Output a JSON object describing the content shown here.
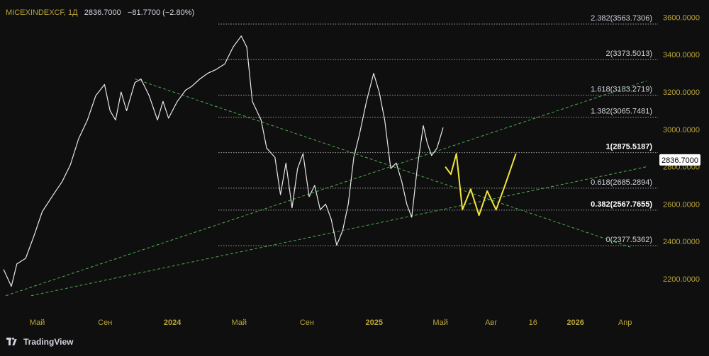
{
  "header": {
    "symbol": "MICEXINDEXCF, 1Д",
    "last": "2836.7000",
    "change": "−81.7700 (−2.80%)"
  },
  "brand": {
    "name": "TradingView"
  },
  "colors": {
    "background": "#0f0f0f",
    "price_line": "#e8e8e8",
    "projection": "#f2e33a",
    "trendlines": "#4caf50",
    "fib_levels": "#9a9a9a",
    "axis_text": "#b8a53a",
    "text": "#d1d4dc"
  },
  "chart_data": {
    "type": "line",
    "title": "MICEXINDEXCF, 1Д",
    "ylim": [
      2110,
      3615
    ],
    "grid": false,
    "y_ticks": [
      "2200.0000",
      "2400.0000",
      "2600.0000",
      "2800.0000",
      "3000.0000",
      "3200.0000",
      "3400.0000",
      "3600.0000"
    ],
    "y_tick_values": [
      2200,
      2400,
      2600,
      2800,
      3000,
      3200,
      3400,
      3600
    ],
    "x_ticks": [
      "Май",
      "Сен",
      "2024",
      "Май",
      "Сен",
      "2025",
      "Май",
      "Авг",
      "16",
      "2026",
      "Апр"
    ],
    "x_tick_dates": [
      "2023-05-01",
      "2023-09-01",
      "2024-01-01",
      "2024-05-01",
      "2024-09-01",
      "2025-01-01",
      "2025-05-01",
      "2025-08-01",
      "2025-10-16",
      "2026-01-01",
      "2026-04-01"
    ],
    "bold_x_ticks": [
      "2024",
      "2025",
      "2026"
    ],
    "current_price": {
      "label": "2836.7000",
      "value": 2836.7
    },
    "fib_levels": [
      {
        "label": "2.382(3563.7306)",
        "value": 3563.73
      },
      {
        "label": "2(3373.5013)",
        "value": 3373.5
      },
      {
        "label": "1.618(3183.2719)",
        "value": 3183.27
      },
      {
        "label": "1.382(3065.7481)",
        "value": 3065.75
      },
      {
        "label": "1(2875.5187)",
        "value": 2875.52,
        "bold": true
      },
      {
        "label": "0.618(2685.2894)",
        "value": 2685.29
      },
      {
        "label": "0.382(2567.7655)",
        "value": 2567.77,
        "bold": true
      },
      {
        "label": "0(2377.5362)",
        "value": 2377.54
      }
    ],
    "series": [
      {
        "type": "price",
        "x": [
          "2023-03-01",
          "2023-03-15",
          "2023-03-25",
          "2023-04-10",
          "2023-04-25",
          "2023-05-10",
          "2023-05-30",
          "2023-06-15",
          "2023-06-30",
          "2023-07-15",
          "2023-07-31",
          "2023-08-15",
          "2023-08-31",
          "2023-09-10",
          "2023-09-20",
          "2023-09-30",
          "2023-10-10",
          "2023-10-25",
          "2023-11-05",
          "2023-11-20",
          "2023-12-05",
          "2023-12-15",
          "2023-12-25",
          "2024-01-10",
          "2024-01-25",
          "2024-02-05",
          "2024-02-20",
          "2024-03-05",
          "2024-03-20",
          "2024-04-05",
          "2024-04-20",
          "2024-05-05",
          "2024-05-15",
          "2024-05-25",
          "2024-06-10",
          "2024-06-20",
          "2024-07-05",
          "2024-07-15",
          "2024-07-25",
          "2024-08-05",
          "2024-08-15",
          "2024-08-25",
          "2024-09-05",
          "2024-09-15",
          "2024-09-25",
          "2024-10-05",
          "2024-10-15",
          "2024-10-25",
          "2024-11-05",
          "2024-11-15",
          "2024-11-25",
          "2024-12-05",
          "2024-12-18",
          "2024-12-31",
          "2025-01-10",
          "2025-01-20",
          "2025-01-31",
          "2025-02-10",
          "2025-02-20",
          "2025-03-01",
          "2025-03-10",
          "2025-03-20",
          "2025-03-31",
          "2025-04-07",
          "2025-04-15",
          "2025-04-25",
          "2025-05-06"
        ],
        "values": [
          2250,
          2160,
          2280,
          2310,
          2430,
          2560,
          2650,
          2720,
          2810,
          2950,
          3050,
          3180,
          3240,
          3100,
          3050,
          3200,
          3100,
          3250,
          3270,
          3180,
          3050,
          3150,
          3060,
          3150,
          3210,
          3230,
          3270,
          3300,
          3320,
          3350,
          3440,
          3500,
          3440,
          3150,
          3050,
          2900,
          2850,
          2650,
          2820,
          2580,
          2790,
          2870,
          2640,
          2700,
          2570,
          2600,
          2520,
          2380,
          2460,
          2600,
          2850,
          2970,
          3150,
          3300,
          3200,
          3050,
          2790,
          2820,
          2720,
          2600,
          2530,
          2790,
          3020,
          2930,
          2860,
          2900,
          3010
        ]
      },
      {
        "type": "projection",
        "x": [
          "2025-05-10",
          "2025-05-20",
          "2025-05-30",
          "2025-06-10",
          "2025-06-25",
          "2025-07-10",
          "2025-07-25",
          "2025-08-10",
          "2025-08-25",
          "2025-09-15"
        ],
        "values": [
          2800,
          2760,
          2870,
          2570,
          2680,
          2540,
          2670,
          2570,
          2690,
          2870
        ]
      }
    ],
    "trendlines": [
      {
        "x": [
          "2023-10-25",
          "2026-04-10"
        ],
        "values": [
          3270,
          2370
        ]
      },
      {
        "x": [
          "2023-03-05",
          "2026-05-10"
        ],
        "values": [
          2110,
          3260
        ]
      },
      {
        "x": [
          "2023-04-20",
          "2026-05-10"
        ],
        "values": [
          2110,
          2800
        ]
      }
    ]
  }
}
